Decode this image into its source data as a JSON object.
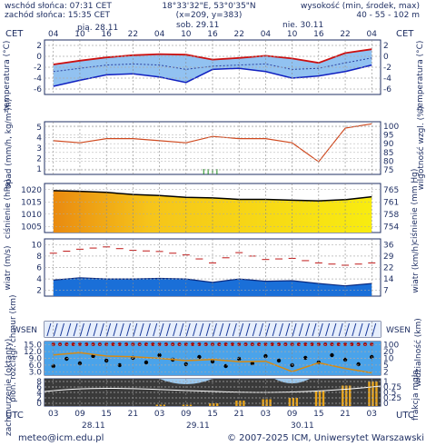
{
  "header": {
    "sunrise": "wschód słońca: 07:31 CET",
    "sunset": "zachód słońca: 15:35 CET",
    "coords": "18°33'32\"E, 53°0'35\"N",
    "grid": "(x=209,  y=383)",
    "altitude_label": "wysokość (min, środek, max)",
    "altitude_values": "40 - 55 - 102 m"
  },
  "footer": {
    "email": "meteo@icm.edu.pl",
    "copyright": "© 2007-2025 ICM, Uniwersytet Warszawski"
  },
  "timezone_top": "CET",
  "timezone_bottom": "UTC",
  "top_hours": [
    "04",
    "10",
    "16",
    "22",
    "04",
    "10",
    "16",
    "22",
    "04",
    "10",
    "16",
    "22",
    "04"
  ],
  "top_days": [
    "pią. 28.11",
    "sob. 29.11",
    "nie. 30.11"
  ],
  "bottom_hours": [
    "03",
    "09",
    "15",
    "21",
    "03",
    "09",
    "15",
    "21",
    "03",
    "09",
    "15",
    "21",
    "03"
  ],
  "bottom_days": [
    "28.11",
    "29.11",
    "30.11"
  ],
  "panel_labels": {
    "temp_left": "temperatura (°C)",
    "temp_right": "temperatura (°C)",
    "precip_left": "opad (mm/h, kg/m²/h)",
    "precip_right": "wilgotność wzgl. (%)",
    "press_left": "ciśnienie (hPa)",
    "press_right": "ciśnienie (mm Hg)",
    "wind_left": "wiatr (m/s)",
    "wind_right": "wiatr (km/h)",
    "cloud_left": "pion. rozciągł. chmur (km)",
    "cloud_right": "widzialność (km)",
    "cover_left": "zachmurzenie (oktanty)",
    "cover_right": "frakcja mgła",
    "wind_dir_left": "W S E N",
    "wind_dir_right": "W S E N"
  },
  "axes": {
    "temp_left": [
      "2",
      "0",
      "-2",
      "-4",
      "-6"
    ],
    "temp_right": [
      "2",
      "0",
      "-2",
      "-4",
      "-6"
    ],
    "precip_left": [
      "5",
      "4",
      "3",
      "2",
      "1"
    ],
    "precip_right": [
      "100",
      "95",
      "90",
      "85",
      "80",
      "75"
    ],
    "press_left": [
      "1020",
      "1015",
      "1010",
      "1005"
    ],
    "press_right": [
      "765",
      "761",
      "758",
      "754"
    ],
    "wind_left": [
      "10",
      "8",
      "6",
      "4",
      "2"
    ],
    "wind_right": [
      "36",
      "29",
      "22",
      "14",
      "7"
    ],
    "cloud_left": [
      "15.0",
      "12.0",
      "9.0",
      "6.0",
      "3.0"
    ],
    "cloud_right": [
      "100",
      "20",
      "10",
      "5",
      "2"
    ],
    "cover_left": [
      "8",
      "6",
      "4",
      "2",
      "0"
    ],
    "cover_right": [
      "1",
      "0.75",
      "0.5",
      "0.25",
      "0"
    ]
  },
  "chart_data": [
    {
      "type": "line",
      "panel": "temperature",
      "ylabel": "temperatura (°C)",
      "ylim": [
        -7,
        3
      ],
      "x_hours_from_start": [
        0,
        6,
        12,
        18,
        24,
        30,
        36,
        42,
        48,
        54,
        60,
        66,
        72
      ],
      "series": [
        {
          "values": [
            -1.5,
            -0.8,
            -0.2,
            0.2,
            0.4,
            0.3,
            -0.6,
            -0.3,
            0.1,
            -0.4,
            -1.2,
            0.6,
            1.3
          ]
        },
        {
          "values": [
            -2.8,
            -2.2,
            -1.6,
            -1.4,
            -1.6,
            -2.4,
            -1.8,
            -1.6,
            -1.4,
            -2.4,
            -2.2,
            -1.2,
            -0.3
          ]
        },
        {
          "values": [
            -5.5,
            -4.4,
            -3.4,
            -3.2,
            -3.8,
            -4.8,
            -2.4,
            -2.2,
            -2.8,
            -4.0,
            -3.6,
            -2.8,
            -1.6
          ]
        }
      ]
    },
    {
      "type": "line",
      "panel": "precipitation_humidity",
      "ylabel": "wilgotność wzgl. (%)",
      "ylim": [
        75,
        100
      ],
      "x_hours_from_start": [
        0,
        6,
        12,
        18,
        24,
        30,
        36,
        42,
        48,
        54,
        60,
        66,
        72
      ],
      "series": [
        {
          "values": [
            91,
            90,
            92,
            92,
            91,
            90,
            93,
            92,
            92,
            90,
            81,
            97,
            99
          ]
        }
      ]
    },
    {
      "type": "area",
      "panel": "pressure",
      "ylabel": "ciśnienie (hPa)",
      "ylim": [
        1005,
        1022
      ],
      "x_hours_from_start": [
        0,
        6,
        12,
        18,
        24,
        30,
        36,
        42,
        48,
        54,
        60,
        66,
        72
      ],
      "series": [
        {
          "values": [
            1019.5,
            1019.3,
            1018.9,
            1018.2,
            1017.8,
            1017.2,
            1017.0,
            1016.5,
            1016.5,
            1016.2,
            1016.0,
            1016.4,
            1017.4
          ]
        }
      ]
    },
    {
      "type": "area",
      "panel": "wind",
      "ylabel": "wiatr (m/s)",
      "ylim": [
        0,
        10
      ],
      "x_hours_from_start": [
        0,
        6,
        12,
        18,
        24,
        30,
        36,
        42,
        48,
        54,
        60,
        66,
        72
      ],
      "series": [
        {
          "values": [
            2.8,
            3.2,
            3.0,
            3.0,
            3.1,
            3.0,
            2.4,
            3.0,
            2.6,
            2.7,
            2.2,
            1.8,
            2.2
          ]
        },
        {
          "values": [
            7.5,
            8.2,
            8.6,
            8.0,
            7.8,
            7.2,
            5.8,
            7.6,
            6.4,
            6.6,
            5.8,
            5.4,
            5.8
          ]
        }
      ]
    },
    {
      "type": "line",
      "panel": "visibility",
      "ylabel": "widzialność (km)",
      "ylim": [
        0,
        15
      ],
      "x_hours_from_start": [
        0,
        6,
        12,
        18,
        24,
        30,
        36,
        42,
        48,
        54,
        60,
        66,
        72
      ],
      "series": [
        {
          "values": [
            9.0,
            10.0,
            8.5,
            8.2,
            7.5,
            6.5,
            7.0,
            6.0,
            6.2,
            1.6,
            5.5,
            3.0,
            1.0
          ]
        }
      ]
    },
    {
      "type": "bar",
      "panel": "fog_fraction",
      "ylabel": "frakcja mgła",
      "ylim": [
        0,
        1
      ],
      "x_hours_from_start": [
        0,
        6,
        12,
        18,
        24,
        30,
        36,
        42,
        48,
        54,
        60,
        66,
        72
      ],
      "values": [
        0,
        0,
        0,
        0,
        0.05,
        0.05,
        0.1,
        0.2,
        0.25,
        0.3,
        0.55,
        0.75,
        0.9
      ]
    }
  ]
}
